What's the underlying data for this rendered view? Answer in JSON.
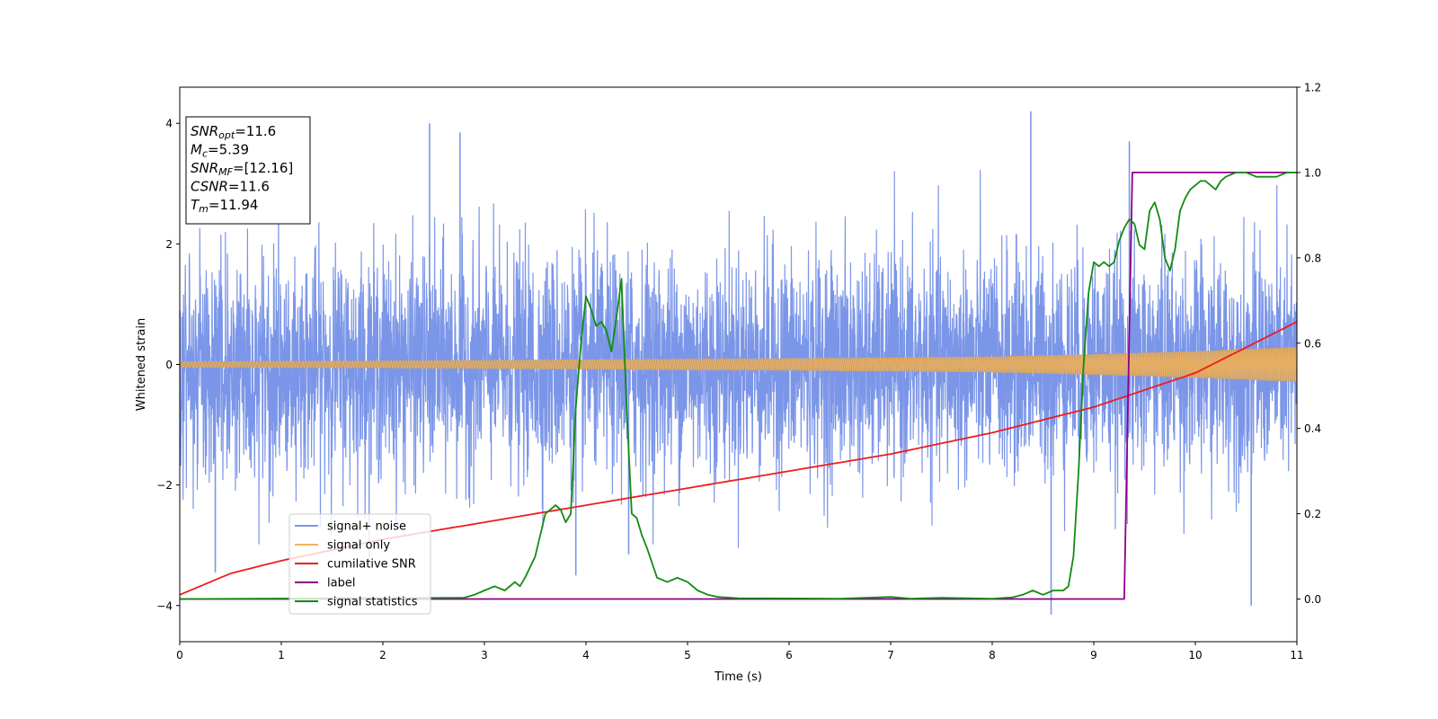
{
  "chart_data": {
    "type": "line",
    "xlabel": "Time (s)",
    "ylabel": "Whitened strain",
    "xlim": [
      0,
      11
    ],
    "ylim": [
      -4.6,
      4.6
    ],
    "y2lim": [
      -0.1,
      1.2
    ],
    "x_ticks": [
      "0",
      "1",
      "2",
      "3",
      "4",
      "5",
      "6",
      "7",
      "8",
      "9",
      "10",
      "11"
    ],
    "y_ticks": [
      "−4",
      "−2",
      "0",
      "2",
      "4"
    ],
    "y2_ticks": [
      "0.0",
      "0.2",
      "0.4",
      "0.6",
      "0.8",
      "1.0",
      "1.2"
    ],
    "grid": false,
    "legend_position": "lower-left",
    "annotation": {
      "lines": [
        {
          "var": "SNR",
          "sub": "opt",
          "value": "=11.6"
        },
        {
          "var": "M",
          "sub": "c",
          "value": "=5.39"
        },
        {
          "var": "SNR",
          "sub": "MF",
          "value": "=[12.16]"
        },
        {
          "var": "CSNR",
          "sub": "",
          "value": "=11.6"
        },
        {
          "var": "T",
          "sub": "m",
          "value": "=11.94"
        }
      ]
    },
    "series": [
      {
        "name": "signal+ noise",
        "axis": "left",
        "color": "#7b96e8",
        "kind": "noisy-strain",
        "sigma": 0.9,
        "extreme_peaks": [
          [
            2.46,
            4.0
          ],
          [
            8.38,
            4.2
          ],
          [
            0.35,
            -3.45
          ],
          [
            3.9,
            -3.5
          ],
          [
            4.42,
            -3.15
          ],
          [
            8.58,
            -4.15
          ],
          [
            10.55,
            -4.0
          ],
          [
            9.35,
            3.7
          ],
          [
            2.76,
            3.85
          ]
        ]
      },
      {
        "name": "signal only",
        "axis": "left",
        "color": "#f2b25c",
        "kind": "chirp-envelope",
        "x": [
          0,
          2,
          4,
          6,
          8,
          9,
          10,
          11
        ],
        "amplitude": [
          0.05,
          0.06,
          0.08,
          0.1,
          0.13,
          0.17,
          0.22,
          0.29
        ]
      },
      {
        "name": "cumilative SNR",
        "axis": "right",
        "color": "#ee1c1c",
        "x": [
          0,
          0.5,
          1,
          2,
          3,
          4,
          5,
          6,
          7,
          8,
          9,
          9.5,
          10,
          10.5,
          11
        ],
        "values": [
          0.01,
          0.06,
          0.09,
          0.14,
          0.18,
          0.22,
          0.26,
          0.3,
          0.34,
          0.39,
          0.45,
          0.49,
          0.53,
          0.59,
          0.65
        ]
      },
      {
        "name": "label",
        "axis": "right",
        "color": "#8b008b",
        "x": [
          0,
          9.3,
          9.38,
          11
        ],
        "values": [
          0.0,
          0.0,
          1.0,
          1.0
        ]
      },
      {
        "name": "signal statistics",
        "axis": "right",
        "color": "#138a13",
        "x": [
          0,
          2.8,
          2.9,
          3.0,
          3.1,
          3.2,
          3.3,
          3.35,
          3.4,
          3.5,
          3.6,
          3.65,
          3.7,
          3.75,
          3.8,
          3.85,
          3.9,
          3.95,
          4.0,
          4.05,
          4.1,
          4.15,
          4.2,
          4.25,
          4.3,
          4.35,
          4.4,
          4.45,
          4.5,
          4.55,
          4.6,
          4.7,
          4.8,
          4.9,
          5.0,
          5.1,
          5.2,
          5.3,
          5.5,
          6.5,
          7.0,
          7.2,
          7.5,
          8.0,
          8.2,
          8.3,
          8.4,
          8.5,
          8.6,
          8.7,
          8.75,
          8.8,
          8.85,
          8.9,
          8.95,
          9.0,
          9.05,
          9.1,
          9.15,
          9.2,
          9.25,
          9.3,
          9.35,
          9.4,
          9.45,
          9.5,
          9.55,
          9.6,
          9.65,
          9.7,
          9.75,
          9.8,
          9.85,
          9.9,
          9.95,
          10.0,
          10.05,
          10.1,
          10.15,
          10.2,
          10.25,
          10.3,
          10.4,
          10.5,
          10.6,
          10.7,
          10.8,
          10.9,
          11.0
        ],
        "values": [
          0.0,
          0.003,
          0.01,
          0.02,
          0.03,
          0.02,
          0.04,
          0.03,
          0.05,
          0.1,
          0.2,
          0.21,
          0.22,
          0.21,
          0.18,
          0.2,
          0.45,
          0.6,
          0.71,
          0.68,
          0.64,
          0.65,
          0.63,
          0.58,
          0.66,
          0.75,
          0.45,
          0.2,
          0.19,
          0.15,
          0.12,
          0.05,
          0.04,
          0.05,
          0.04,
          0.02,
          0.01,
          0.005,
          0.002,
          0.001,
          0.005,
          0.001,
          0.003,
          0.001,
          0.004,
          0.01,
          0.02,
          0.01,
          0.02,
          0.02,
          0.03,
          0.1,
          0.3,
          0.55,
          0.72,
          0.79,
          0.78,
          0.79,
          0.78,
          0.79,
          0.84,
          0.87,
          0.89,
          0.88,
          0.83,
          0.82,
          0.91,
          0.93,
          0.89,
          0.8,
          0.77,
          0.82,
          0.91,
          0.94,
          0.96,
          0.97,
          0.98,
          0.98,
          0.97,
          0.96,
          0.98,
          0.99,
          1.0,
          1.0,
          0.99,
          0.99,
          0.99,
          1.0,
          1.0
        ]
      }
    ]
  }
}
